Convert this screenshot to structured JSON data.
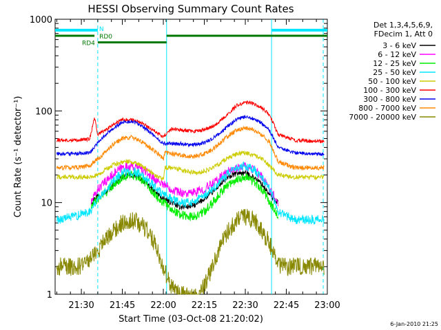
{
  "chart_data": {
    "type": "line",
    "title": "HESSI Observing Summary Count Rates",
    "xlabel": "Start Time (03-Oct-08 21:20:02)",
    "ylabel": "Count Rate (s⁻¹ detector⁻¹)",
    "ylog": true,
    "xlim": [
      21.34,
      23.0
    ],
    "ylim": [
      1,
      1000
    ],
    "x_unit": "hours (UT, 03-Oct-08)",
    "x_ticks": [
      {
        "v": 21.5,
        "label": "21:30"
      },
      {
        "v": 21.75,
        "label": "21:45"
      },
      {
        "v": 22.0,
        "label": "22:00"
      },
      {
        "v": 22.25,
        "label": "22:15"
      },
      {
        "v": 22.5,
        "label": "22:30"
      },
      {
        "v": 22.75,
        "label": "22:45"
      },
      {
        "v": 23.0,
        "label": "23:00"
      }
    ],
    "y_ticks": [
      {
        "v": 1,
        "label": "1"
      },
      {
        "v": 10,
        "label": "10"
      },
      {
        "v": 100,
        "label": "100"
      },
      {
        "v": 1000,
        "label": "1000"
      }
    ],
    "grid": false,
    "legend_position": "right",
    "legend_header": [
      "Det 1,3,4,5,6,9,",
      "FDecim 1, Att 0"
    ],
    "timestamp": "6-Jan-2010 21:25",
    "flags": [
      {
        "label": "N",
        "color": "#00e6ff",
        "level": 760,
        "segments": [
          [
            21.34,
            21.6
          ],
          [
            22.66,
            23.0
          ]
        ]
      },
      {
        "label": "RD0",
        "color": "#007700",
        "level": 660,
        "segments": [
          [
            21.34,
            21.58
          ],
          [
            22.02,
            23.0
          ]
        ]
      },
      {
        "label": "RD4",
        "color": "#007700",
        "level": 560,
        "segments": [
          [
            21.6,
            22.02
          ]
        ]
      }
    ],
    "vlines": [
      {
        "x": 21.6,
        "style": "dashed",
        "color": "#00e6ff"
      },
      {
        "x": 22.02,
        "style": "solid",
        "color": "#00e6ff"
      },
      {
        "x": 22.66,
        "style": "solid",
        "color": "#00e6ff"
      },
      {
        "x": 22.975,
        "style": "dashed",
        "color": "#00e6ff"
      }
    ],
    "series": [
      {
        "name": "3 - 6 keV",
        "color": "#000000",
        "x": [
          21.56,
          21.6,
          21.65,
          21.7,
          21.75,
          21.8,
          21.85,
          21.9,
          21.95,
          22.0,
          22.05,
          22.1,
          22.15,
          22.2,
          22.25,
          22.3,
          22.35,
          22.4,
          22.45,
          22.5,
          22.55,
          22.6,
          22.65,
          22.7
        ],
        "values": [
          10,
          12,
          13,
          16,
          19,
          20,
          19,
          16,
          13,
          11,
          10,
          9,
          9,
          9.5,
          11,
          13,
          16,
          19,
          21,
          21,
          19,
          16,
          12,
          10
        ]
      },
      {
        "name": "6 - 12 keV",
        "color": "#ff00ff",
        "x": [
          21.56,
          21.6,
          21.65,
          21.7,
          21.75,
          21.8,
          21.85,
          21.9,
          21.95,
          22.0,
          22.05,
          22.1,
          22.15,
          22.2,
          22.25,
          22.3,
          22.35,
          22.4,
          22.45,
          22.5,
          22.55,
          22.6,
          22.65,
          22.7
        ],
        "values": [
          10,
          14,
          17,
          21,
          24,
          25,
          24,
          21,
          18,
          16,
          14,
          13,
          12.5,
          13,
          14,
          16,
          19,
          22,
          24,
          25,
          23,
          19,
          14,
          10
        ]
      },
      {
        "name": "12 - 25 keV",
        "color": "#00ee00",
        "x": [
          21.56,
          21.6,
          21.65,
          21.7,
          21.75,
          21.8,
          21.85,
          21.9,
          21.95,
          22.0,
          22.05,
          22.1,
          22.15,
          22.2,
          22.25,
          22.3,
          22.35,
          22.4,
          22.45,
          22.5,
          22.55,
          22.6,
          22.65,
          22.7
        ],
        "values": [
          9,
          11,
          13,
          16,
          19,
          20,
          19,
          16,
          12,
          10,
          8.5,
          7.5,
          7,
          7.2,
          8,
          10,
          13,
          16,
          18,
          19,
          17,
          14,
          10,
          7
        ]
      },
      {
        "name": "25 - 50 keV",
        "color": "#00e6ff",
        "x": [
          21.35,
          21.45,
          21.55,
          21.6,
          21.65,
          21.7,
          21.75,
          21.8,
          21.85,
          21.9,
          21.95,
          22.0,
          22.05,
          22.1,
          22.15,
          22.2,
          22.25,
          22.3,
          22.35,
          22.4,
          22.45,
          22.5,
          22.55,
          22.6,
          22.65,
          22.7,
          22.8,
          22.9,
          22.98
        ],
        "values": [
          6.5,
          7,
          8,
          11,
          14,
          18,
          21,
          22,
          21,
          18,
          15,
          12,
          11,
          10,
          10,
          10.5,
          12,
          14,
          17,
          21,
          24,
          25,
          23,
          19,
          14,
          8,
          6.5,
          6.5,
          6.5
        ]
      },
      {
        "name": "50 - 100 keV",
        "color": "#cccc00",
        "x": [
          21.35,
          21.45,
          21.55,
          21.6,
          21.65,
          21.7,
          21.75,
          21.8,
          21.85,
          21.9,
          21.95,
          22.0,
          22.01,
          22.05,
          22.1,
          22.15,
          22.2,
          22.25,
          22.3,
          22.35,
          22.4,
          22.45,
          22.5,
          22.55,
          22.6,
          22.65,
          22.7,
          22.8,
          22.9,
          22.98
        ],
        "values": [
          19,
          19,
          19,
          20,
          23,
          26,
          28,
          28,
          26,
          23,
          20,
          18,
          24,
          24,
          23,
          22,
          21,
          22,
          24,
          27,
          31,
          34,
          35,
          33,
          30,
          25,
          20,
          19,
          19,
          19
        ]
      },
      {
        "name": "100 - 300 keV",
        "color": "#ff0000",
        "x": [
          21.35,
          21.45,
          21.55,
          21.58,
          21.6,
          21.65,
          21.7,
          21.75,
          21.8,
          21.85,
          21.9,
          21.95,
          22.0,
          22.05,
          22.1,
          22.15,
          22.2,
          22.25,
          22.3,
          22.35,
          22.4,
          22.45,
          22.5,
          22.55,
          22.6,
          22.65,
          22.7,
          22.8,
          22.9,
          22.98
        ],
        "values": [
          48,
          48,
          49,
          85,
          55,
          62,
          72,
          80,
          80,
          76,
          68,
          60,
          52,
          64,
          62,
          61,
          60,
          62,
          68,
          78,
          95,
          115,
          125,
          120,
          108,
          90,
          55,
          48,
          47,
          47
        ]
      },
      {
        "name": "300 - 800 keV",
        "color": "#0000ee",
        "x": [
          21.35,
          21.45,
          21.55,
          21.6,
          21.65,
          21.7,
          21.75,
          21.8,
          21.85,
          21.9,
          21.95,
          22.0,
          22.05,
          22.1,
          22.15,
          22.2,
          22.25,
          22.3,
          22.35,
          22.4,
          22.45,
          22.5,
          22.55,
          22.6,
          22.65,
          22.7,
          22.8,
          22.9,
          22.98
        ],
        "values": [
          34,
          34,
          35,
          45,
          55,
          66,
          75,
          77,
          72,
          62,
          52,
          44,
          44,
          44,
          43,
          43,
          45,
          50,
          58,
          70,
          82,
          86,
          82,
          74,
          60,
          40,
          35,
          34,
          34
        ]
      },
      {
        "name": "800 - 7000 keV",
        "color": "#ff8800",
        "x": [
          21.35,
          21.45,
          21.55,
          21.6,
          21.65,
          21.7,
          21.75,
          21.8,
          21.85,
          21.9,
          21.95,
          22.0,
          22.01,
          22.05,
          22.1,
          22.15,
          22.2,
          22.25,
          22.3,
          22.35,
          22.4,
          22.45,
          22.5,
          22.55,
          22.6,
          22.65,
          22.7,
          22.8,
          22.9,
          22.98
        ],
        "values": [
          24,
          24,
          25,
          30,
          36,
          44,
          50,
          52,
          48,
          42,
          36,
          30,
          35,
          34,
          33,
          32,
          32,
          34,
          38,
          45,
          54,
          62,
          65,
          62,
          55,
          45,
          28,
          24,
          24,
          24
        ]
      },
      {
        "name": "7000 - 20000 keV",
        "color": "#888800",
        "x": [
          21.35,
          21.45,
          21.5,
          21.55,
          21.6,
          21.65,
          21.7,
          21.75,
          21.8,
          21.85,
          21.9,
          21.95,
          22.0,
          22.05,
          22.1,
          22.15,
          22.2,
          22.25,
          22.3,
          22.35,
          22.4,
          22.45,
          22.5,
          22.55,
          22.6,
          22.65,
          22.7,
          22.8,
          22.9,
          22.98
        ],
        "values": [
          2,
          2,
          2,
          2.5,
          3,
          4,
          5,
          6,
          6.5,
          6,
          5,
          3.5,
          2,
          1.2,
          1,
          1,
          1,
          1.2,
          2,
          3.5,
          5,
          6.5,
          7,
          6.5,
          5,
          3.5,
          2,
          2,
          2,
          2
        ]
      }
    ]
  }
}
